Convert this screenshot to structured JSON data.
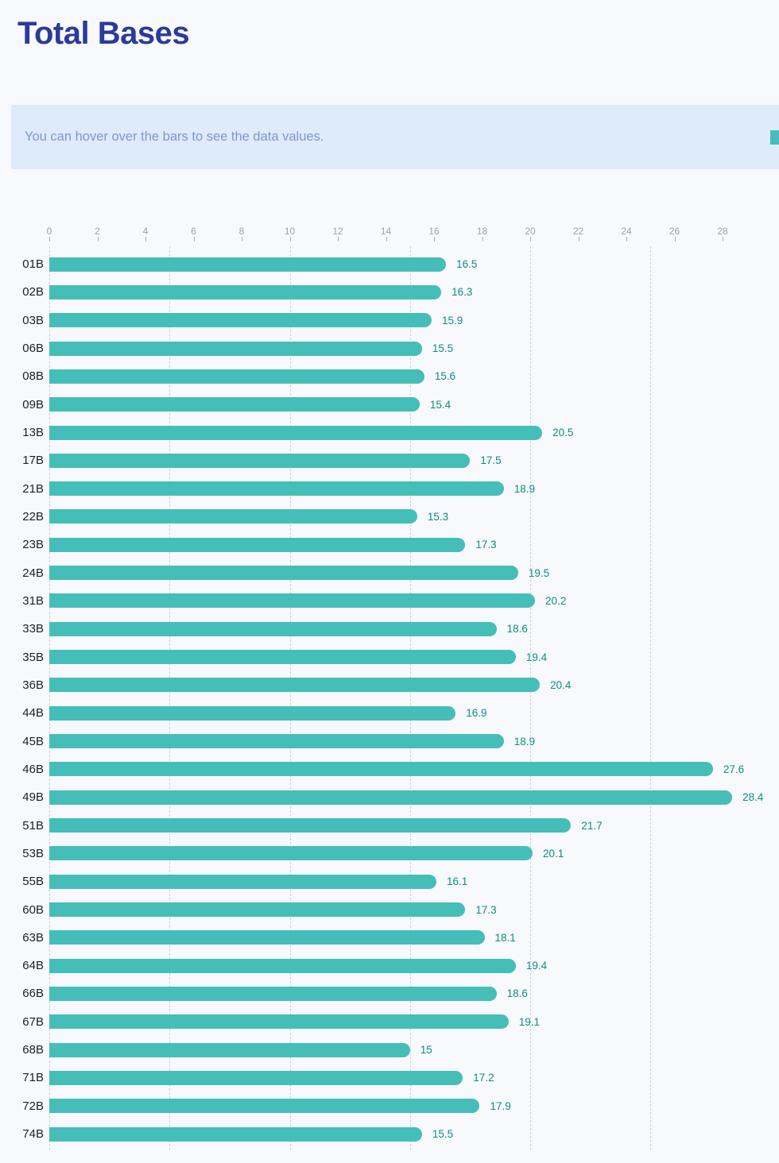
{
  "page": {
    "title": "Total Bases",
    "info_banner": {
      "text": "You can hover over the bars to see the data values."
    },
    "legend_swatch": {
      "color": "#45beb9",
      "cut_off_at_right_edge": true
    },
    "colors": {
      "page_bg": "#f7f9fc",
      "title": "#2b3a9a",
      "banner_bg": "#deebfa",
      "banner_text": "#7e96d6",
      "bar": "#45beb9",
      "value_label": "#0e8d85",
      "category_label": "#1f1f1f",
      "tick_label": "#9ba1a8",
      "gridline": "#cdd2d8"
    }
  },
  "chart_data": {
    "type": "bar",
    "orientation": "horizontal",
    "title": "Total Bases",
    "categories": [
      "01B",
      "02B",
      "03B",
      "06B",
      "08B",
      "09B",
      "13B",
      "17B",
      "21B",
      "22B",
      "23B",
      "24B",
      "31B",
      "33B",
      "35B",
      "36B",
      "44B",
      "45B",
      "46B",
      "49B",
      "51B",
      "53B",
      "55B",
      "60B",
      "63B",
      "64B",
      "66B",
      "67B",
      "68B",
      "71B",
      "72B",
      "74B"
    ],
    "values": [
      16.5,
      16.3,
      15.9,
      15.5,
      15.6,
      15.4,
      20.5,
      17.5,
      18.9,
      15.3,
      17.3,
      19.5,
      20.2,
      18.6,
      19.4,
      20.4,
      16.9,
      18.9,
      27.6,
      28.4,
      21.7,
      20.1,
      16.1,
      17.3,
      18.1,
      19.4,
      18.6,
      19.1,
      15,
      17.2,
      17.9,
      15.5
    ],
    "x_ticks": [
      0,
      2,
      4,
      6,
      8,
      10,
      12,
      14,
      16,
      18,
      20,
      22,
      24,
      26,
      28
    ],
    "gridline_values": [
      0,
      5,
      10,
      15,
      20,
      25
    ],
    "xlim": [
      0,
      29
    ],
    "grid": "dashed-vertical-every-5",
    "axis_position": "top",
    "data_labels": "end-of-bar",
    "legend_position": "top-right-cut-off",
    "xlabel": "",
    "ylabel": ""
  }
}
